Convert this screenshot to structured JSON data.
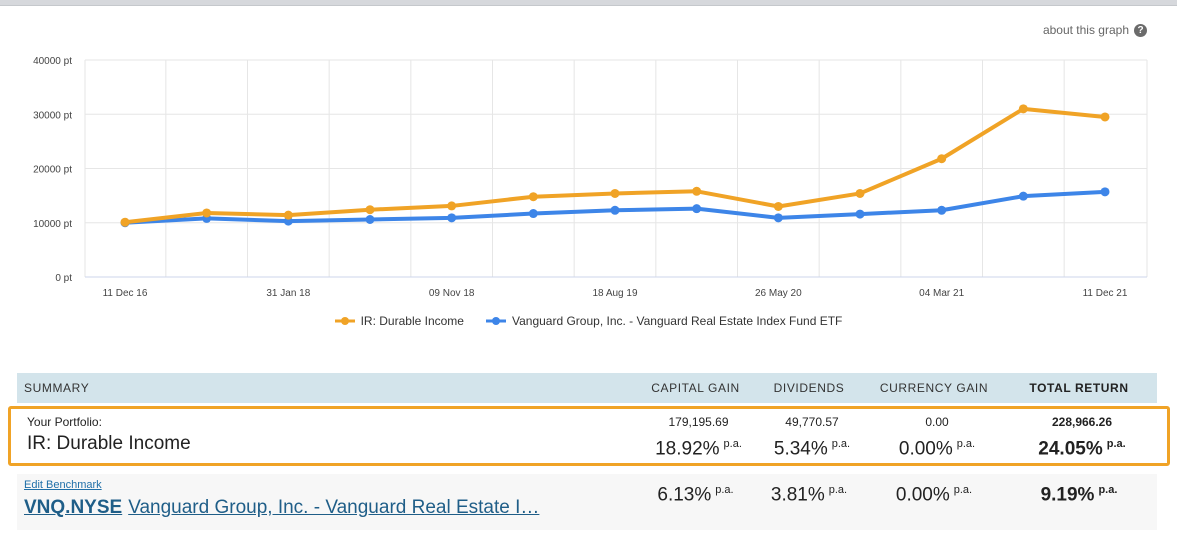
{
  "header": {
    "about_label": "about this graph",
    "about_icon": "help-circle-icon"
  },
  "chart_data": {
    "type": "line",
    "x": [
      "11 Dec 16",
      "",
      "31 Jan 18",
      "",
      "09 Nov 18",
      "",
      "18 Aug 19",
      "",
      "26 May 20",
      "",
      "04 Mar 21",
      "",
      "11 Dec 21"
    ],
    "x_tick_labels": [
      "11 Dec 16",
      "31 Jan 18",
      "09 Nov 18",
      "18 Aug 19",
      "26 May 20",
      "04 Mar 21",
      "11 Dec 21"
    ],
    "y_tick_labels": [
      "0 pt",
      "10000 pt",
      "20000 pt",
      "30000 pt",
      "40000 pt"
    ],
    "ylim": [
      0,
      40000
    ],
    "grid": true,
    "legend_position": "bottom",
    "series": [
      {
        "name": "IR: Durable Income",
        "color": "#f0a326",
        "values": [
          10100,
          11800,
          11400,
          12400,
          13100,
          14800,
          15400,
          15800,
          13000,
          15400,
          21800,
          31000,
          29500
        ]
      },
      {
        "name": "Vanguard Group, Inc. - Vanguard Real Estate Index Fund ETF",
        "color": "#3d85e8",
        "values": [
          10000,
          10800,
          10300,
          10600,
          10900,
          11700,
          12300,
          12600,
          10900,
          11600,
          12300,
          14900,
          15700
        ]
      }
    ]
  },
  "summary": {
    "headers": {
      "summary": "SUMMARY",
      "capital_gain": "CAPITAL GAIN",
      "dividends": "DIVIDENDS",
      "currency_gain": "CURRENCY GAIN",
      "total_return": "TOTAL RETURN"
    },
    "portfolio": {
      "label": "Your Portfolio:",
      "name": "IR: Durable Income",
      "capital_gain_amount": "179,195.69",
      "dividends_amount": "49,770.57",
      "currency_gain_amount": "0.00",
      "total_return_amount": "228,966.26",
      "capital_gain_pct": "18.92%",
      "dividends_pct": "5.34%",
      "currency_gain_pct": "0.00%",
      "total_return_pct": "24.05%",
      "pa": "p.a."
    },
    "benchmark": {
      "edit_label": "Edit Benchmark",
      "code": "VNQ.NYSE",
      "name": "Vanguard Group, Inc. - Vanguard Real Estate I…",
      "capital_gain_pct": "6.13%",
      "dividends_pct": "3.81%",
      "currency_gain_pct": "0.00%",
      "total_return_pct": "9.19%",
      "pa": "p.a."
    }
  }
}
